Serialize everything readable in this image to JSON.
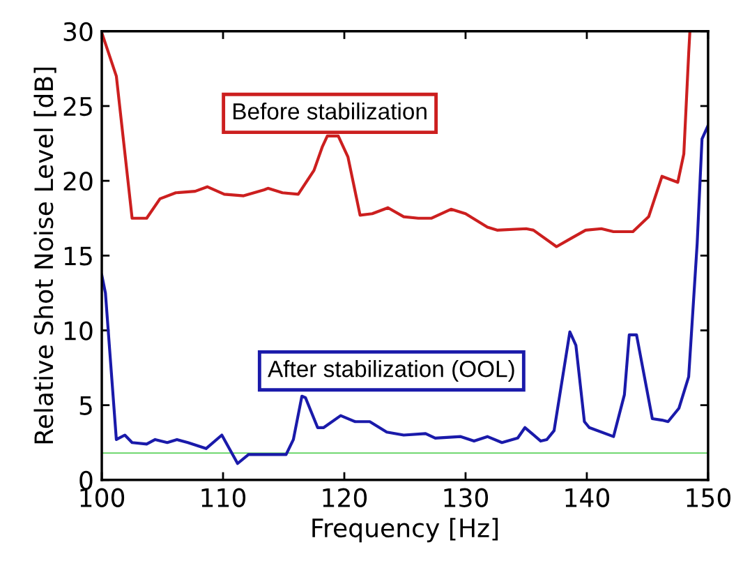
{
  "chart_data": {
    "type": "line",
    "xlabel": "Frequency [Hz]",
    "ylabel": "Relative Shot Noise Level [dB]",
    "xlim": [
      100,
      150
    ],
    "xticks": [
      100,
      110,
      120,
      130,
      140,
      150
    ],
    "ylim": [
      0,
      30
    ],
    "yticks": [
      0,
      5,
      10,
      15,
      20,
      25,
      30
    ],
    "grid": false,
    "legend": false,
    "marker": "none",
    "line_style": "solid",
    "series": [
      {
        "name": "Before stabilization",
        "color": "#cc1f1f",
        "x": [
          100,
          101.2,
          102.5,
          103.7,
          104.8,
          106.1,
          107.7,
          108.7,
          110.1,
          111.7,
          113.4,
          113.7,
          114.9,
          116.2,
          117.5,
          118.2,
          118.6,
          119.5,
          120.3,
          121.3,
          122.3,
          123.6,
          124.9,
          126.1,
          127.2,
          128.8,
          130.0,
          131.8,
          132.6,
          135.0,
          135.6,
          137.5,
          138.8,
          139.9,
          141.2,
          142.2,
          143.8,
          145.1,
          146.2,
          147.5,
          148.0,
          148.4,
          148.5
        ],
        "values": [
          29.9,
          27.0,
          17.5,
          17.5,
          18.8,
          19.2,
          19.3,
          19.6,
          19.1,
          19.0,
          19.4,
          19.5,
          19.2,
          19.1,
          20.7,
          22.3,
          23.0,
          23.0,
          21.6,
          17.7,
          17.8,
          18.2,
          17.6,
          17.5,
          17.5,
          18.1,
          17.8,
          16.9,
          16.7,
          16.8,
          16.7,
          15.6,
          16.2,
          16.7,
          16.8,
          16.6,
          16.6,
          17.6,
          20.3,
          19.9,
          21.8,
          28.5,
          30
        ]
      },
      {
        "name": "After stabilization (OOL)",
        "color": "#1a1aaa",
        "x": [
          100,
          100.3,
          101.2,
          101.9,
          102.5,
          103.7,
          104.4,
          105.4,
          106.2,
          107.1,
          108.6,
          109.9,
          111.2,
          112.1,
          114.1,
          115.2,
          115.8,
          116.5,
          116.8,
          117.8,
          118.3,
          119.7,
          120.9,
          122.1,
          123.5,
          124.9,
          126.7,
          127.5,
          129.6,
          130.7,
          131.8,
          133.0,
          134.3,
          134.9,
          136.2,
          136.7,
          137.3,
          138.6,
          139.1,
          139.8,
          140.2,
          142.2,
          143.1,
          143.5,
          144.1,
          145.4,
          146.2,
          146.7,
          147.6,
          148.4,
          149.1,
          149.5,
          150
        ],
        "values": [
          13.7,
          12.5,
          2.7,
          3.0,
          2.5,
          2.4,
          2.7,
          2.5,
          2.7,
          2.5,
          2.1,
          3.0,
          1.1,
          1.7,
          1.7,
          1.7,
          2.7,
          5.6,
          5.5,
          3.5,
          3.5,
          4.3,
          3.9,
          3.9,
          3.2,
          3.0,
          3.1,
          2.8,
          2.9,
          2.6,
          2.9,
          2.5,
          2.8,
          3.5,
          2.6,
          2.7,
          3.3,
          9.9,
          9.0,
          3.9,
          3.5,
          2.9,
          5.7,
          9.7,
          9.7,
          4.1,
          4.0,
          3.9,
          4.8,
          6.9,
          15.8,
          22.8,
          23.7
        ]
      }
    ],
    "ref_lines": [
      {
        "axis": "y",
        "value": 1.8,
        "color": "#44cc44",
        "line_style": "solid"
      }
    ]
  }
}
